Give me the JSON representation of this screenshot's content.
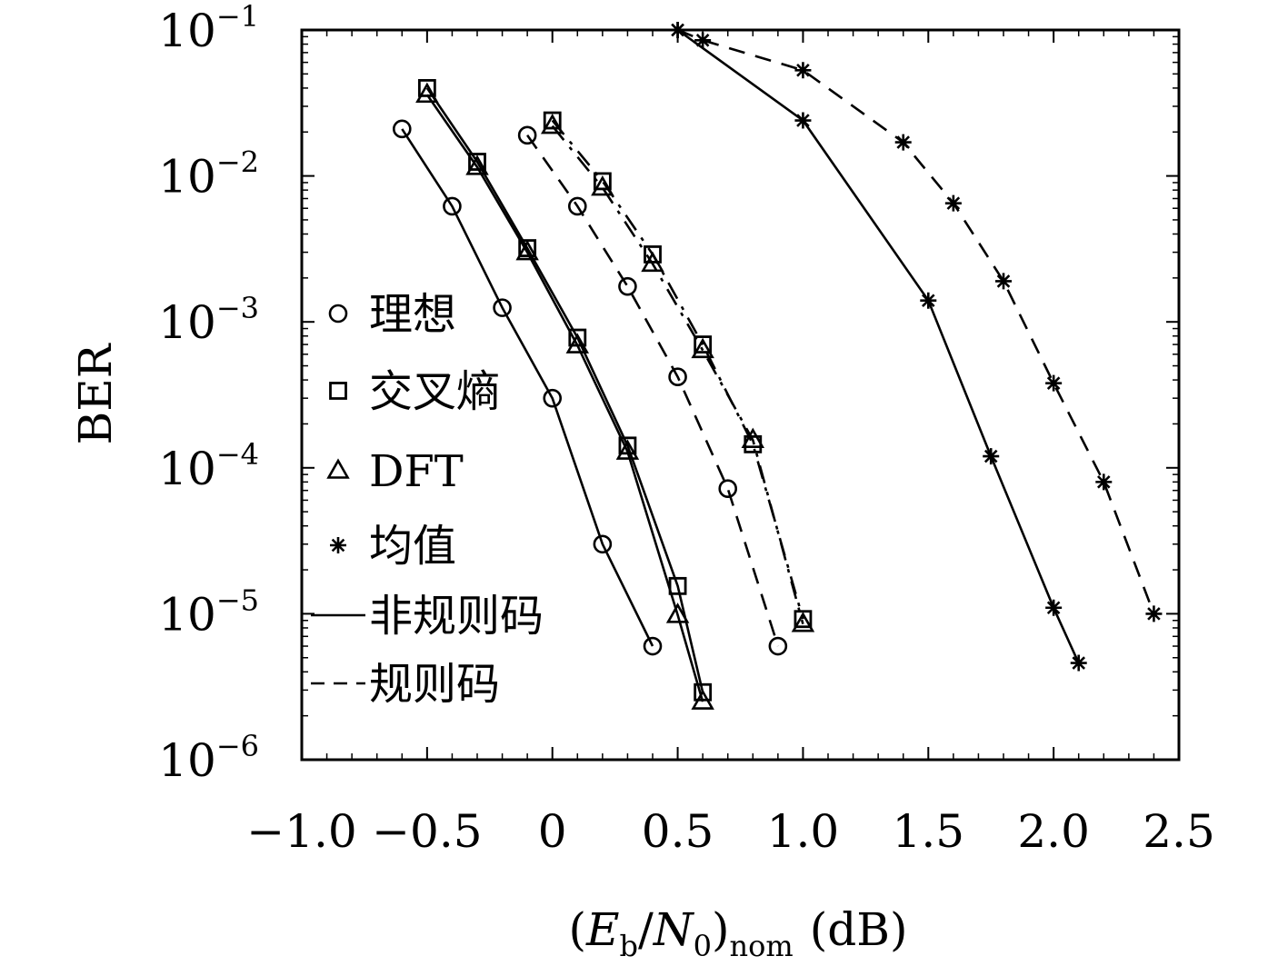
{
  "chart_data": {
    "type": "line",
    "xlabel": "(E_b/N_0)_nom (dB)",
    "xlabel_parts": {
      "open": "(",
      "E": "E",
      "b": "b",
      "slash": "/",
      "N": "N",
      "zero": "0",
      "close": ")",
      "nom": "nom",
      "unit": "(dB)"
    },
    "ylabel": "BER",
    "xlim": [
      -1.0,
      2.5
    ],
    "ylim": [
      1e-06,
      0.1
    ],
    "yscale": "log",
    "grid": false,
    "legend_position": "left-center",
    "x_ticks": [
      {
        "value": -1.0,
        "label": "−1.0"
      },
      {
        "value": -0.5,
        "label": "−0.5"
      },
      {
        "value": 0,
        "label": "0"
      },
      {
        "value": 0.5,
        "label": "0.5"
      },
      {
        "value": 1.0,
        "label": "1.0"
      },
      {
        "value": 1.5,
        "label": "1.5"
      },
      {
        "value": 2.0,
        "label": "2.0"
      },
      {
        "value": 2.5,
        "label": "2.5"
      }
    ],
    "y_ticks": [
      {
        "exp": -1,
        "base": "10",
        "sup": "−1"
      },
      {
        "exp": -2,
        "base": "10",
        "sup": "−2"
      },
      {
        "exp": -3,
        "base": "10",
        "sup": "−3"
      },
      {
        "exp": -4,
        "base": "10",
        "sup": "−4"
      },
      {
        "exp": -5,
        "base": "10",
        "sup": "−5"
      },
      {
        "exp": -6,
        "base": "10",
        "sup": "−6"
      }
    ],
    "series": [
      {
        "method": "ideal",
        "code": "irregular",
        "marker": "circle",
        "line": "solid",
        "x": [
          -0.6,
          -0.4,
          -0.2,
          0.0,
          0.2,
          0.4
        ],
        "y": [
          0.021,
          0.0062,
          0.00125,
          0.0003,
          3e-05,
          6e-06
        ]
      },
      {
        "method": "cross-entropy",
        "code": "irregular",
        "marker": "square",
        "line": "solid",
        "x": [
          -0.5,
          -0.3,
          -0.1,
          0.1,
          0.3,
          0.5,
          0.6
        ],
        "y": [
          0.04,
          0.0125,
          0.0032,
          0.00078,
          0.000142,
          1.55e-05,
          2.9e-06
        ]
      },
      {
        "method": "dft",
        "code": "irregular",
        "marker": "triangle",
        "line": "solid",
        "x": [
          -0.5,
          -0.3,
          -0.1,
          0.1,
          0.3,
          0.5,
          0.6
        ],
        "y": [
          0.036,
          0.0115,
          0.003,
          0.00069,
          0.000129,
          9.8e-06,
          2.5e-06
        ]
      },
      {
        "method": "mean",
        "code": "irregular",
        "marker": "star",
        "line": "solid",
        "x": [
          0.5,
          1.0,
          1.5,
          1.75,
          2.0,
          2.1
        ],
        "y": [
          0.1,
          0.024,
          0.0014,
          0.00012,
          1.1e-05,
          4.6e-06
        ]
      },
      {
        "method": "ideal",
        "code": "regular",
        "marker": "circle",
        "line": "dashed",
        "x": [
          -0.1,
          0.1,
          0.3,
          0.5,
          0.7,
          0.9
        ],
        "y": [
          0.019,
          0.0062,
          0.00175,
          0.00042,
          7.2e-05,
          6e-06
        ]
      },
      {
        "method": "cross-entropy",
        "code": "regular",
        "marker": "square",
        "line": "dashdot",
        "x": [
          0.0,
          0.2,
          0.4,
          0.6,
          0.8,
          1.0
        ],
        "y": [
          0.024,
          0.0092,
          0.0029,
          0.0007,
          0.000145,
          9.2e-06
        ]
      },
      {
        "method": "dft",
        "code": "regular",
        "marker": "triangle",
        "line": "dashdot",
        "x": [
          0.0,
          0.2,
          0.4,
          0.6,
          0.8,
          1.0
        ],
        "y": [
          0.022,
          0.0083,
          0.0025,
          0.00064,
          0.000155,
          8.5e-06
        ]
      },
      {
        "method": "mean",
        "code": "regular",
        "marker": "star",
        "line": "dashed",
        "x": [
          0.5,
          0.6,
          1.0,
          1.4,
          1.6,
          1.8,
          2.0,
          2.2,
          2.4
        ],
        "y": [
          0.1,
          0.085,
          0.053,
          0.017,
          0.0065,
          0.0019,
          0.00038,
          8e-05,
          1e-05
        ]
      }
    ],
    "legend": [
      {
        "label": "理想",
        "marker": "circle",
        "line": "none"
      },
      {
        "label": "交叉熵",
        "marker": "square",
        "line": "none"
      },
      {
        "label": "DFT",
        "marker": "triangle",
        "line": "none"
      },
      {
        "label": "均值",
        "marker": "star",
        "line": "none"
      },
      {
        "label": "非规则码",
        "marker": "none",
        "line": "solid"
      },
      {
        "label": "规则码",
        "marker": "none",
        "line": "dashed"
      }
    ],
    "colors": {
      "foreground": "#000000",
      "background": "#ffffff"
    }
  }
}
